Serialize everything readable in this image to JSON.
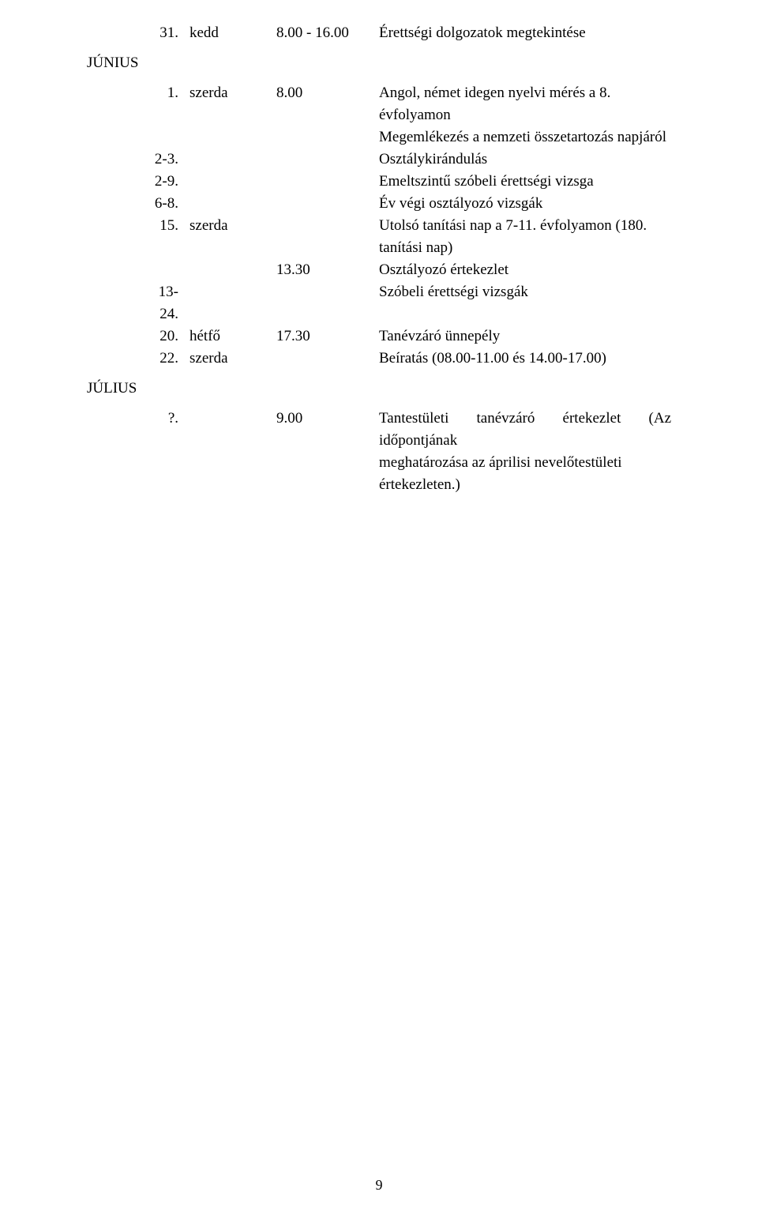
{
  "top_row": {
    "date": "31.",
    "day": "kedd",
    "time": "8.00 - 16.00",
    "desc": "Érettségi dolgozatok megtekintése"
  },
  "months": {
    "june": "JÚNIUS",
    "july": "JÚLIUS"
  },
  "rows_june": [
    {
      "date": "1.",
      "day": "szerda",
      "time": "8.00",
      "desc": "Angol, német idegen nyelvi mérés a 8. évfolyamon"
    },
    {
      "date": "",
      "day": "",
      "time": "",
      "desc": "Megemlékezés a nemzeti összetartozás napjáról"
    },
    {
      "date": "2-3.",
      "day": "",
      "time": "",
      "desc": "Osztálykirándulás"
    },
    {
      "date": "2-9.",
      "day": "",
      "time": "",
      "desc": "Emeltszintű szóbeli érettségi vizsga"
    },
    {
      "date": "6-8.",
      "day": "",
      "time": "",
      "desc": "Év végi osztályozó vizsgák"
    },
    {
      "date": "15.",
      "day": "szerda",
      "time": "",
      "desc": "Utolsó tanítási nap a 7-11. évfolyamon (180. tanítási nap)"
    },
    {
      "date": "",
      "day": "",
      "time": "13.30",
      "desc": "Osztályozó értekezlet"
    },
    {
      "date": "13-24.",
      "day": "",
      "time": "",
      "desc": "Szóbeli érettségi vizsgák"
    },
    {
      "date": "20.",
      "day": "hétfő",
      "time": "17.30",
      "desc": "Tanévzáró ünnepély"
    },
    {
      "date": "22.",
      "day": "szerda",
      "time": "",
      "desc": "Beíratás (08.00-11.00 és 14.00-17.00)"
    }
  ],
  "row_july": {
    "date": "?.",
    "day": "",
    "time": "9.00",
    "desc_line1": "Tantestületi tanévzáró értekezlet (Az időpontjának",
    "desc_line2": "meghatározása az áprilisi nevelőtestületi értekezleten.)"
  },
  "page_number": "9"
}
